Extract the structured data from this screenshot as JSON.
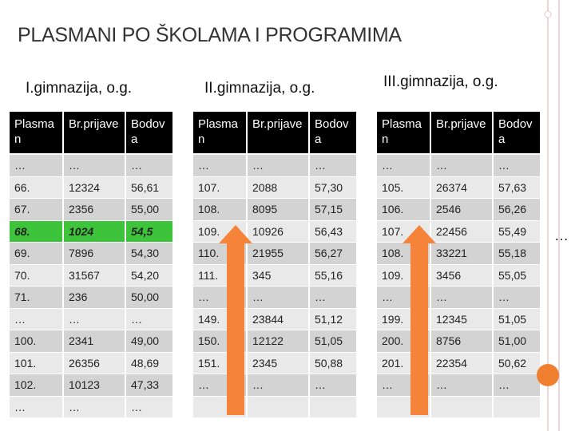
{
  "title": "PLASMANI PO ŠKOLAMA I PROGRAMIMA",
  "side_note": "…",
  "tables": [
    {
      "subtitle": "I.gimnazija, o.g.",
      "columns": [
        "Plasman",
        "Br.prijave",
        "Bodova"
      ],
      "highlight_row": 3,
      "rows": [
        [
          "…",
          "…",
          "…"
        ],
        [
          "66.",
          "12324",
          "56,61"
        ],
        [
          "67.",
          "2356",
          "55,00"
        ],
        [
          "68.",
          "1024",
          "54,5"
        ],
        [
          "69.",
          "7896",
          "54,30"
        ],
        [
          "70.",
          "31567",
          "54,20"
        ],
        [
          "71.",
          "236",
          "50,00"
        ],
        [
          "…",
          "…",
          "…"
        ],
        [
          "100.",
          "2341",
          "49,00"
        ],
        [
          "101.",
          "26356",
          "48,69"
        ],
        [
          "102.",
          "10123",
          "47,33"
        ],
        [
          "…",
          "…",
          "…"
        ]
      ]
    },
    {
      "subtitle": "II.gimnazija, o.g.",
      "columns": [
        "Plasman",
        "Br.prijave",
        "Bodova"
      ],
      "rows": [
        [
          "…",
          "…",
          "…"
        ],
        [
          "107.",
          "2088",
          "57,30"
        ],
        [
          "108.",
          "8095",
          "57,15"
        ],
        [
          "109.",
          "10926",
          "56,43"
        ],
        [
          "110.",
          "21955",
          "56,27"
        ],
        [
          "111.",
          "345",
          "55,16"
        ],
        [
          "…",
          "…",
          "…"
        ],
        [
          "149.",
          "23844",
          "51,12"
        ],
        [
          "150.",
          "12122",
          "51,05"
        ],
        [
          "151.",
          "2345",
          "50,88"
        ],
        [
          "…",
          "…",
          "…"
        ]
      ]
    },
    {
      "subtitle": "III.gimnazija, o.g.",
      "columns": [
        "Plasman",
        "Br.prijave",
        "Bodova"
      ],
      "rows": [
        [
          "…",
          "…",
          "…"
        ],
        [
          "105.",
          "26374",
          "57,63"
        ],
        [
          "106.",
          "2546",
          "56,26"
        ],
        [
          "107.",
          "22456",
          "55,49"
        ],
        [
          "108.",
          "33221",
          "55,18"
        ],
        [
          "109.",
          "3456",
          "55,05"
        ],
        [
          "…",
          "…",
          "…"
        ],
        [
          "199.",
          "12345",
          "51,05"
        ],
        [
          "200.",
          "8756",
          "51,00"
        ],
        [
          "201.",
          "22354",
          "50,62"
        ],
        [
          "…",
          "…",
          "…"
        ]
      ]
    }
  ]
}
